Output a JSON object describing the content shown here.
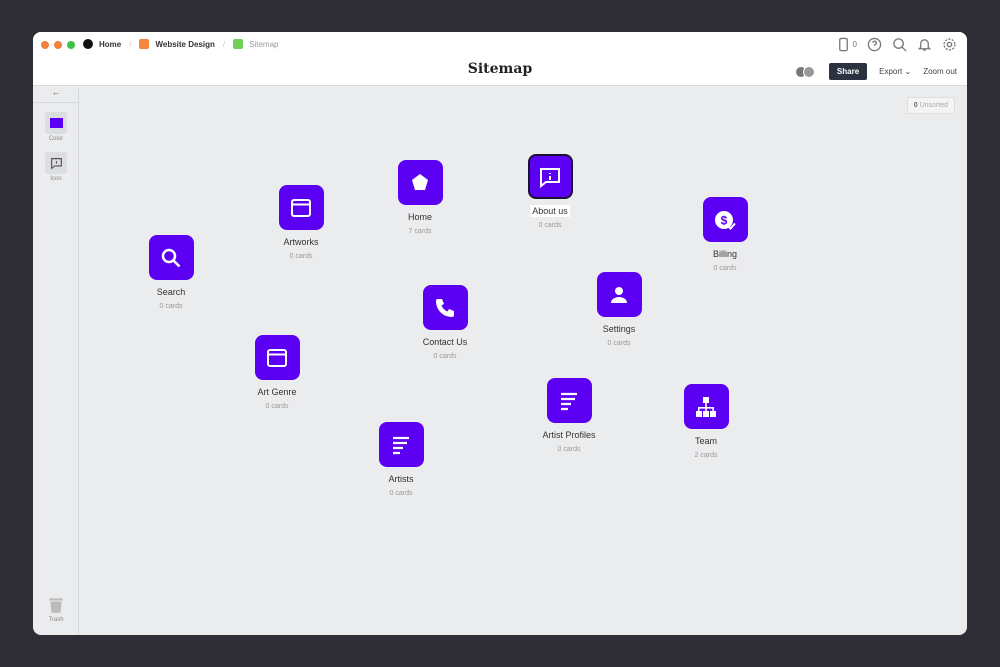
{
  "breadcrumb": [
    {
      "label": "Home",
      "color": "#111111"
    },
    {
      "label": "Website Design",
      "color": "#f5863c"
    },
    {
      "label": "Sitemap",
      "color": "#6fcf57"
    }
  ],
  "title": "Sitemap",
  "toolbar": {
    "device_count": "0",
    "share": "Share",
    "export": "Export",
    "zoom_out": "Zoom out"
  },
  "sidebar": {
    "color_label": "Color",
    "icon_label": "Icon",
    "trash_label": "Trash",
    "accent": "#5b00f2"
  },
  "unsorted": {
    "count": "0",
    "label": "Unsorted"
  },
  "nodes": [
    {
      "label": "Search",
      "cards": "0 cards",
      "icon": "search"
    },
    {
      "label": "Artworks",
      "cards": "0 cards",
      "icon": "browser"
    },
    {
      "label": "Home",
      "cards": "7 cards",
      "icon": "home-pentagon"
    },
    {
      "label": "About us",
      "cards": "0 cards",
      "icon": "info-chat"
    },
    {
      "label": "Billing",
      "cards": "0 cards",
      "icon": "dollar-check"
    },
    {
      "label": "Contact Us",
      "cards": "0 cards",
      "icon": "phone"
    },
    {
      "label": "Settings",
      "cards": "0 cards",
      "icon": "user"
    },
    {
      "label": "Art Genre",
      "cards": "0 cards",
      "icon": "browser"
    },
    {
      "label": "Artist Profiles",
      "cards": "0 cards",
      "icon": "list"
    },
    {
      "label": "Team",
      "cards": "2 cards",
      "icon": "org-chart"
    },
    {
      "label": "Artists",
      "cards": "0 cards",
      "icon": "list"
    }
  ]
}
